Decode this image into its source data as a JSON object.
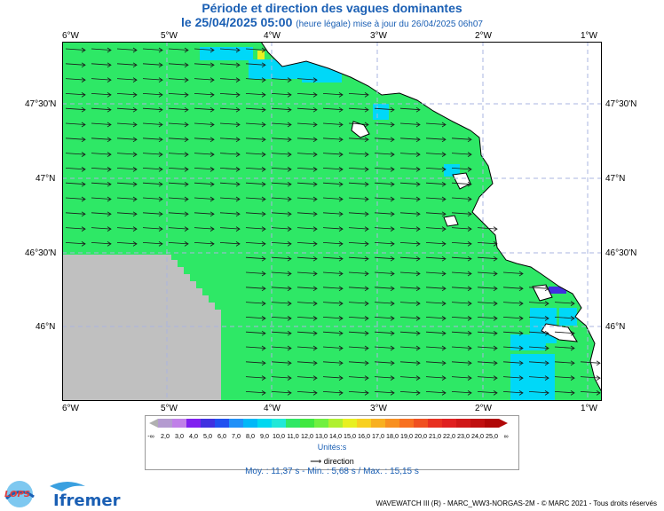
{
  "title": "Période et direction des vagues dominantes",
  "subtitle_date": "le 25/04/2025 05:00",
  "subtitle_note": "(heure légale) mise à jour du 26/04/2025 06h07",
  "lon_labels": [
    "6°W",
    "5°W",
    "4°W",
    "3°W",
    "2°W",
    "1°W"
  ],
  "lat_labels": [
    "47°30'N",
    "47°N",
    "46°30'N",
    "46°N"
  ],
  "legend": {
    "ticks": [
      "-∞",
      "2,0",
      "3,0",
      "4,0",
      "5,0",
      "6,0",
      "7,0",
      "8,0",
      "9,0",
      "10,0",
      "11,0",
      "12,0",
      "13,0",
      "14,0",
      "15,0",
      "16,0",
      "17,0",
      "18,0",
      "19,0",
      "20,0",
      "21,0",
      "22,0",
      "23,0",
      "24,0",
      "25,0",
      "∞"
    ],
    "colors": [
      "#b49bd0",
      "#c080e8",
      "#8020f0",
      "#4030e0",
      "#2050f0",
      "#2090f8",
      "#00b8f8",
      "#00d8f0",
      "#20e8d8",
      "#2ee866",
      "#40e840",
      "#70f040",
      "#b0f030",
      "#e8f020",
      "#f8d020",
      "#f8b020",
      "#f89020",
      "#f87020",
      "#f05020",
      "#e83020",
      "#e02020",
      "#d01818",
      "#c01010",
      "#b00808"
    ],
    "unit": "Unités:s",
    "direction_label": "direction"
  },
  "stats": "Moy. : 11,37 s   -   Min. : 5,68 s / Max. : 15,15 s",
  "footer": "WAVEWATCH III (R) - MARC_WW3-NORGAS-2M - © MARC 2021 - Tous droits réservés",
  "logos": {
    "lops": "LOPS",
    "ifremer": "Ifremer"
  },
  "colors": {
    "sea_main": "#2ee866",
    "sea_shallow": "#00d8f8",
    "land": "#ffffff",
    "nodata": "#c0c0c0",
    "grid": "#aab4e0",
    "title": "#1a5fb4"
  }
}
